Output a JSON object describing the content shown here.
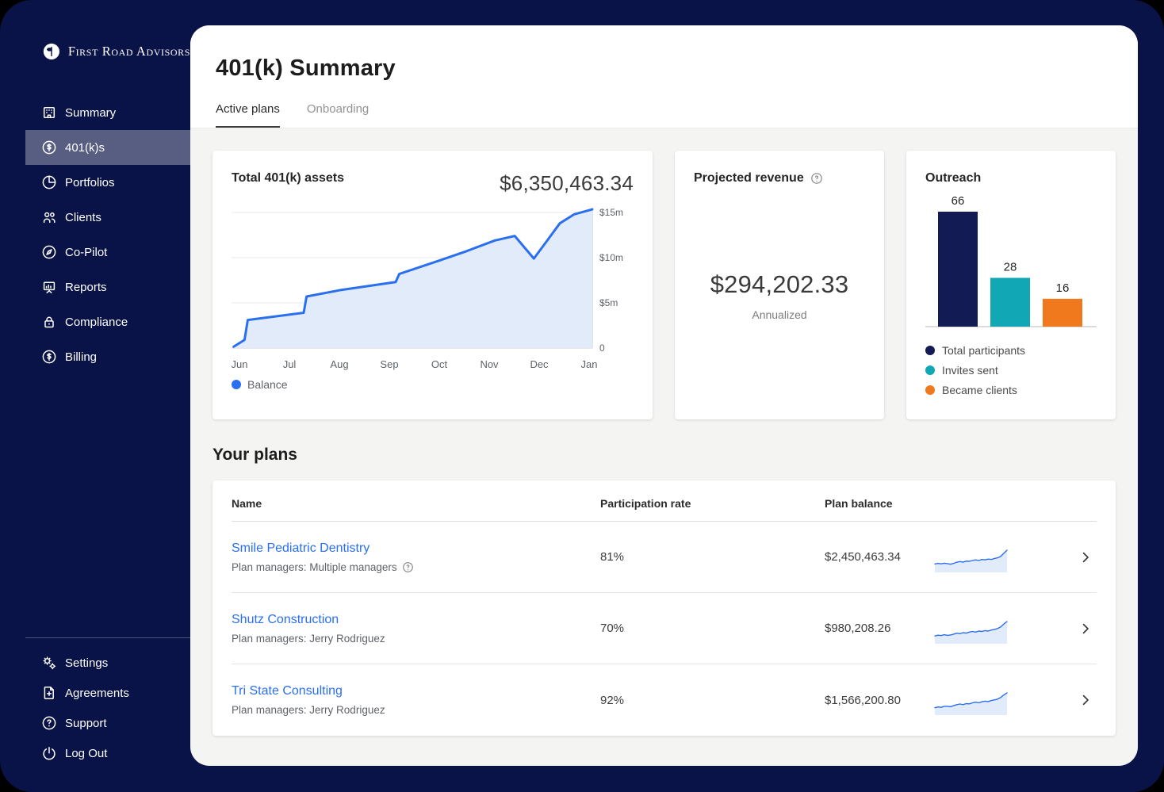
{
  "brand": {
    "name": "First Road Advisors"
  },
  "sidebar": {
    "items": [
      {
        "label": "Summary"
      },
      {
        "label": "401(k)s",
        "active": true
      },
      {
        "label": "Portfolios"
      },
      {
        "label": "Clients"
      },
      {
        "label": "Co-Pilot"
      },
      {
        "label": "Reports"
      },
      {
        "label": "Compliance"
      },
      {
        "label": "Billing"
      }
    ],
    "footer_items": [
      {
        "label": "Settings"
      },
      {
        "label": "Agreements"
      },
      {
        "label": "Support"
      },
      {
        "label": "Log Out"
      }
    ]
  },
  "header": {
    "title": "401(k) Summary",
    "tabs": [
      {
        "label": "Active plans",
        "active": true
      },
      {
        "label": "Onboarding",
        "active": false
      }
    ]
  },
  "cards": {
    "assets": {
      "title": "Total 401(k) assets",
      "value": "$6,350,463.34"
    },
    "revenue": {
      "title": "Projected revenue",
      "value": "$294,202.33",
      "subtitle": "Annualized"
    },
    "outreach": {
      "title": "Outreach"
    }
  },
  "chart_data": [
    {
      "type": "area",
      "title": "Total 401(k) assets",
      "unit": "millions USD",
      "x_ticks": [
        "Jun",
        "Jul",
        "Aug",
        "Sep",
        "Oct",
        "Nov",
        "Dec",
        "Jan"
      ],
      "y_ticks": [
        {
          "label": "$15m",
          "value": 15
        },
        {
          "label": "$10m",
          "value": 10
        },
        {
          "label": "$5m",
          "value": 5
        },
        {
          "label": "0",
          "value": 0
        }
      ],
      "ylim": [
        0,
        16
      ],
      "series": [
        {
          "name": "Balance",
          "points": [
            [
              0.006,
              0.15
            ],
            [
              0.036,
              0.9
            ],
            [
              0.045,
              3.1
            ],
            [
              0.2,
              3.9
            ],
            [
              0.208,
              5.7
            ],
            [
              0.3,
              6.4
            ],
            [
              0.455,
              7.3
            ],
            [
              0.465,
              8.2
            ],
            [
              0.57,
              9.6
            ],
            [
              0.65,
              10.7
            ],
            [
              0.73,
              11.9
            ],
            [
              0.785,
              12.4
            ],
            [
              0.838,
              9.9
            ],
            [
              0.875,
              11.9
            ],
            [
              0.91,
              13.8
            ],
            [
              0.95,
              14.8
            ],
            [
              1.0,
              15.35
            ]
          ]
        }
      ],
      "line_color": "#2a6ff0",
      "fill_color": "#e2ebfa",
      "legend_position": "bottom-left"
    },
    {
      "type": "bar",
      "title": "Outreach",
      "categories": [
        "Total participants",
        "Invites sent",
        "Became clients"
      ],
      "values": [
        66,
        28,
        16
      ],
      "colors": [
        "#131b54",
        "#12a7b5",
        "#f0791d"
      ],
      "legend_position": "bottom"
    }
  ],
  "plans": {
    "section_title": "Your plans",
    "columns": [
      "Name",
      "Participation rate",
      "Plan balance"
    ],
    "rows": [
      {
        "name": "Smile Pediatric Dentistry",
        "managers": "Plan managers: Multiple managers",
        "participation": "81%",
        "balance": "$2,450,463.34",
        "sparkline": [
          0.33,
          0.36,
          0.34,
          0.37,
          0.35,
          0.32,
          0.36,
          0.42,
          0.45,
          0.42,
          0.47,
          0.46,
          0.5,
          0.53,
          0.5,
          0.55,
          0.53,
          0.57,
          0.55,
          0.6,
          0.63,
          0.7,
          0.85,
          1.0
        ]
      },
      {
        "name": "Shutz Construction",
        "managers": "Plan managers: Jerry Rodriguez",
        "participation": "70%",
        "balance": "$980,208.26",
        "sparkline": [
          0.3,
          0.34,
          0.32,
          0.36,
          0.33,
          0.35,
          0.39,
          0.44,
          0.41,
          0.46,
          0.44,
          0.49,
          0.52,
          0.49,
          0.54,
          0.52,
          0.56,
          0.54,
          0.59,
          0.62,
          0.66,
          0.74,
          0.88,
          1.0
        ]
      },
      {
        "name": "Tri State Consulting",
        "managers": "Plan managers: Jerry Rodriguez",
        "participation": "92%",
        "balance": "$1,566,200.80",
        "sparkline": [
          0.28,
          0.32,
          0.3,
          0.35,
          0.35,
          0.33,
          0.38,
          0.43,
          0.46,
          0.43,
          0.48,
          0.47,
          0.52,
          0.55,
          0.52,
          0.57,
          0.6,
          0.58,
          0.63,
          0.66,
          0.7,
          0.78,
          0.9,
          1.0
        ]
      }
    ]
  },
  "colors": {
    "app_bg": "#0a1347",
    "content_bg": "#f4f4f3",
    "accent_blue": "#2a6ff0",
    "bar_navy": "#131b54",
    "bar_teal": "#12a7b5",
    "bar_orange": "#f0791d",
    "active_nav_overlay": "rgba(255,255,255,0.32)"
  }
}
